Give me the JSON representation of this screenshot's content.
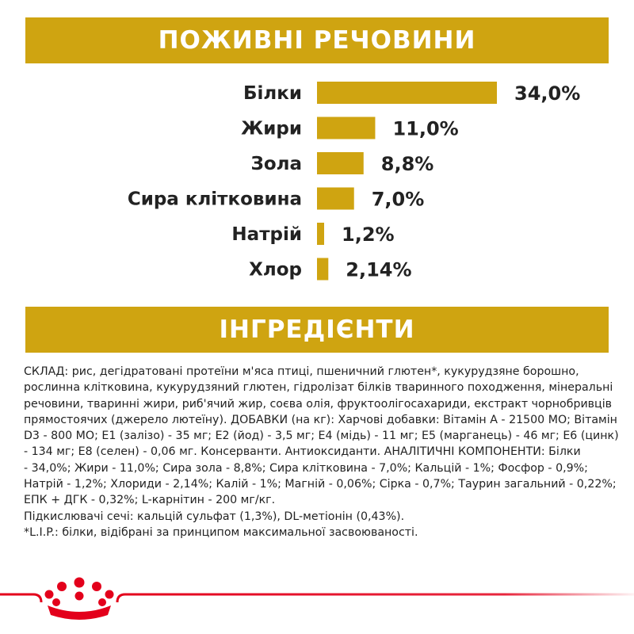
{
  "colors": {
    "accent": "#cfa411",
    "brand_red": "#e3001b",
    "text": "#222222"
  },
  "nutrients_title": "ПОЖИВНІ РЕЧОВИНИ",
  "ingredients_title": "ІНГРЕДІЄНТИ",
  "chart_data": {
    "type": "bar",
    "orientation": "horizontal",
    "categories": [
      "Білки",
      "Жири",
      "Зола",
      "Сира клітковина",
      "Натрій",
      "Хлор"
    ],
    "values": [
      34.0,
      11.0,
      8.8,
      7.0,
      1.2,
      2.14
    ],
    "value_labels": [
      "34,0%",
      "11,0%",
      "8,8%",
      "7,0%",
      "1,2%",
      "2,14%"
    ],
    "title": "ПОЖИВНІ РЕЧОВИНИ",
    "xlabel": "",
    "ylabel": "",
    "grid": false,
    "legend": "none",
    "bar_color": "#cfa411"
  },
  "ingredients_lines": [
    "СКЛАД: рис, дегідратовані протеїни м'яса птиці, пшеничний глютен*, кукурудзяне борошно,",
    "рослинна клітковина, кукурудзяний глютен, гідролізат білків тваринного походження, мінеральні",
    "речовини, тваринні жири, риб'ячий жир, соєва олія, фруктоолігосахариди, екстракт чорнобривців",
    "прямостоячих (джерело лютеїну). ДОБАВКИ (на кг): Харчові добавки: Вітамін А - 21500 МО; Вітамін",
    "D3 - 800 МО; Е1 (залізо) - 35 мг; Е2 (йод) - 3,5 мг; Е4 (мідь) - 11 мг; Е5 (марганець) - 46 мг; Е6 (цинк)",
    "- 134 мг; Е8 (селен) - 0,06 мг. Консерванти. Антиоксиданти. АНАЛІТИЧНІ КОМПОНЕНТИ: Білки",
    "- 34,0%; Жири - 11,0%; Сира зола - 8,8%; Сира клітковина - 7,0%; Кальцій - 1%; Фосфор - 0,9%;",
    "Натрій - 1,2%; Хлориди - 2,14%; Калій - 1%; Магній - 0,06%; Сірка - 0,7%; Таурин загальний - 0,22%;",
    "ЕПК + ДГК - 0,32%; L-карнітин - 200 мг/кг.",
    "Підкислювачі сечі: кальцій сульфат (1,3%), DL-метіонін (0,43%).",
    "*L.I.P.: білки, відібрані за принципом максимальної засвоюваності."
  ]
}
